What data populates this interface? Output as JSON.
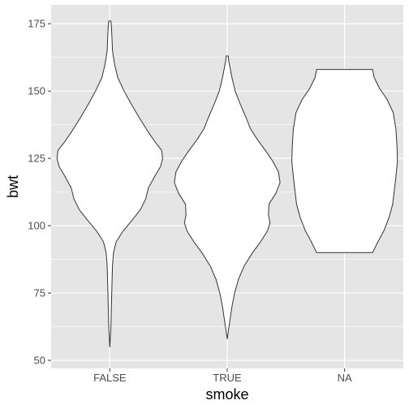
{
  "chart_data": {
    "type": "violin",
    "xlabel": "smoke",
    "ylabel": "bwt",
    "ylim": [
      47,
      182
    ],
    "yticks": [
      50,
      75,
      100,
      125,
      150,
      175
    ],
    "categories": [
      "FALSE",
      "TRUE",
      "NA"
    ],
    "grid": true,
    "colors": {
      "panel": "#e5e5e5",
      "grid": "#ffffff",
      "violin_fill": "#ffffff",
      "violin_stroke": "#333333",
      "tick_text": "#4d4d4d"
    },
    "violins": [
      {
        "category": "FALSE",
        "y_min": 55,
        "y_max": 176,
        "profile": [
          [
            55,
            0.0
          ],
          [
            62,
            0.02
          ],
          [
            70,
            0.03
          ],
          [
            78,
            0.04
          ],
          [
            85,
            0.05
          ],
          [
            90,
            0.07
          ],
          [
            94,
            0.12
          ],
          [
            98,
            0.25
          ],
          [
            102,
            0.42
          ],
          [
            106,
            0.58
          ],
          [
            110,
            0.68
          ],
          [
            114,
            0.73
          ],
          [
            118,
            0.84
          ],
          [
            122,
            0.96
          ],
          [
            125,
            1.0
          ],
          [
            128,
            0.98
          ],
          [
            131,
            0.86
          ],
          [
            135,
            0.72
          ],
          [
            140,
            0.56
          ],
          [
            145,
            0.41
          ],
          [
            150,
            0.27
          ],
          [
            155,
            0.15
          ],
          [
            160,
            0.09
          ],
          [
            165,
            0.05
          ],
          [
            170,
            0.04
          ],
          [
            174,
            0.03
          ],
          [
            176,
            0.02
          ]
        ]
      },
      {
        "category": "TRUE",
        "y_min": 58,
        "y_max": 163,
        "profile": [
          [
            58,
            0.0
          ],
          [
            62,
            0.03
          ],
          [
            66,
            0.06
          ],
          [
            70,
            0.09
          ],
          [
            75,
            0.14
          ],
          [
            80,
            0.21
          ],
          [
            85,
            0.32
          ],
          [
            90,
            0.48
          ],
          [
            94,
            0.63
          ],
          [
            98,
            0.76
          ],
          [
            101,
            0.81
          ],
          [
            104,
            0.78
          ],
          [
            108,
            0.79
          ],
          [
            112,
            0.92
          ],
          [
            116,
            1.0
          ],
          [
            120,
            0.97
          ],
          [
            124,
            0.86
          ],
          [
            128,
            0.72
          ],
          [
            132,
            0.57
          ],
          [
            136,
            0.44
          ],
          [
            140,
            0.36
          ],
          [
            145,
            0.25
          ],
          [
            150,
            0.15
          ],
          [
            155,
            0.09
          ],
          [
            158,
            0.06
          ],
          [
            161,
            0.03
          ],
          [
            163,
            0.02
          ]
        ]
      },
      {
        "category": "NA",
        "y_min": 90,
        "y_max": 158,
        "profile": [
          [
            90,
            0.53
          ],
          [
            94,
            0.63
          ],
          [
            98,
            0.74
          ],
          [
            103,
            0.84
          ],
          [
            108,
            0.91
          ],
          [
            113,
            0.94
          ],
          [
            118,
            0.97
          ],
          [
            124,
            1.0
          ],
          [
            130,
            0.99
          ],
          [
            136,
            0.97
          ],
          [
            142,
            0.92
          ],
          [
            147,
            0.8
          ],
          [
            151,
            0.66
          ],
          [
            155,
            0.56
          ],
          [
            158,
            0.53
          ]
        ]
      }
    ]
  }
}
